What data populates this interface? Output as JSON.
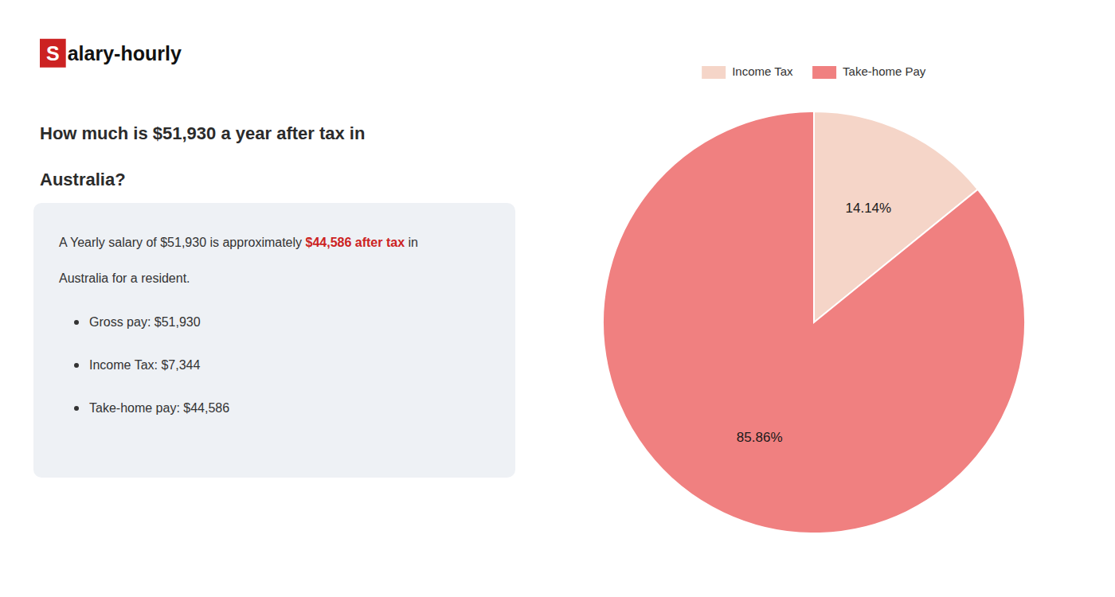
{
  "chart_data": {
    "type": "pie",
    "title": [
      "How much is $51,930 a year after tax in",
      "Australia?"
    ],
    "annotations": {
      "logo": [
        {
          "text": "S",
          "color": "#cc2222"
        },
        {
          "text": "alary-hourly"
        }
      ],
      "summary": [
        [
          {
            "text": "A Yearly salary of $51,930 is approximately "
          },
          {
            "text": "$44,586 after tax",
            "color": "#cc2222"
          },
          {
            "text": " in"
          }
        ],
        [
          {
            "text": "Australia for a resident."
          }
        ]
      ],
      "bullets": [
        "Gross pay: $51,930",
        "Income Tax: $7,344",
        "Take-home pay: $44,586"
      ]
    },
    "categories": [
      "Income Tax",
      "Take-home Pay"
    ],
    "values": [
      14.14,
      85.86
    ],
    "value_labels": [
      "14.14%",
      "85.86%"
    ],
    "colors": [
      "#f5d5c8",
      "#f08080"
    ],
    "data_labels": true,
    "legend": "top"
  }
}
